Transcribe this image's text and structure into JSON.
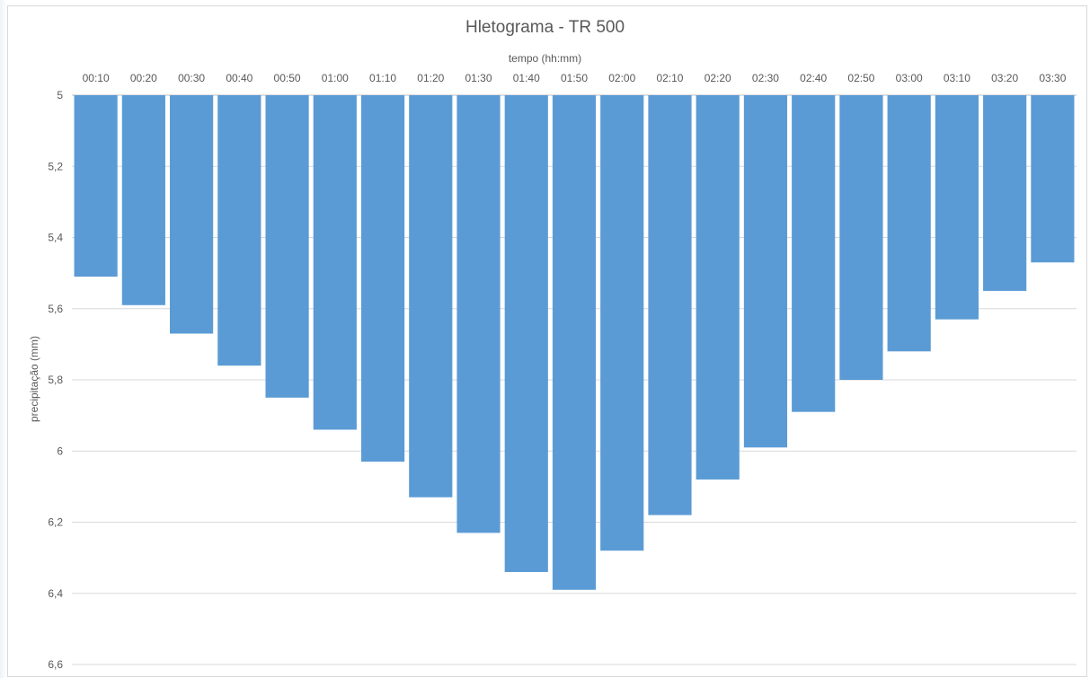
{
  "chart_data": {
    "type": "bar",
    "title": "Hletograma - TR 500",
    "xlabel": "tempo (hh:mm)",
    "ylabel": "precipitação (mm)",
    "x_axis_position": "top",
    "y_axis_inverted": true,
    "ylim": [
      5,
      6.6
    ],
    "yticks": [
      "5",
      "5,2",
      "5,4",
      "5,6",
      "5,8",
      "6",
      "6,2",
      "6,4",
      "6,6"
    ],
    "ytick_values": [
      5,
      5.2,
      5.4,
      5.6,
      5.8,
      6,
      6.2,
      6.4,
      6.6
    ],
    "grid": true,
    "legend": "none",
    "bar_color": "#5b9bd5",
    "categories": [
      "00:10",
      "00:20",
      "00:30",
      "00:40",
      "00:50",
      "01:00",
      "01:10",
      "01:20",
      "01:30",
      "01:40",
      "01:50",
      "02:00",
      "02:10",
      "02:20",
      "02:30",
      "02:40",
      "02:50",
      "03:00",
      "03:10",
      "03:20",
      "03:30"
    ],
    "values": [
      5.51,
      5.59,
      5.67,
      5.76,
      5.85,
      5.94,
      6.03,
      6.13,
      6.23,
      6.34,
      6.39,
      6.28,
      6.18,
      6.08,
      5.99,
      5.89,
      5.8,
      5.72,
      5.63,
      5.55,
      5.47
    ]
  }
}
